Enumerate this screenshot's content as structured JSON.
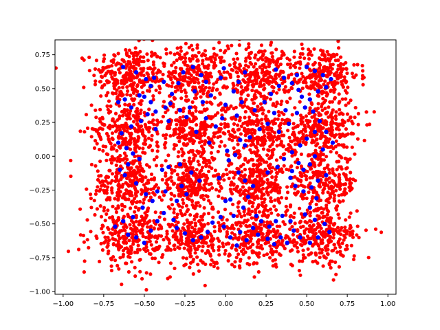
{
  "chart_data": {
    "type": "scatter",
    "title": "",
    "xlabel": "",
    "ylabel": "",
    "xlim": [
      -1.05,
      1.05
    ],
    "ylim": [
      -1.02,
      0.86
    ],
    "grid": false,
    "x_ticks": [
      -1.0,
      -0.75,
      -0.5,
      -0.25,
      0.0,
      0.25,
      0.5,
      0.75,
      1.0
    ],
    "x_tick_labels": [
      "−1.00",
      "−0.75",
      "−0.50",
      "−0.25",
      "0.00",
      "0.25",
      "0.50",
      "0.75",
      "1.00"
    ],
    "y_ticks": [
      -1.0,
      -0.75,
      -0.5,
      -0.25,
      0.0,
      0.25,
      0.5,
      0.75
    ],
    "y_tick_labels": [
      "−1.00",
      "−0.75",
      "−0.50",
      "−0.25",
      "0.00",
      "0.25",
      "0.50",
      "0.75"
    ],
    "background_series": {
      "color": "#ff0000",
      "cluster_centers": [
        [
          -0.6,
          0.6
        ],
        [
          -0.2,
          0.6
        ],
        [
          0.2,
          0.6
        ],
        [
          0.6,
          0.6
        ],
        [
          -0.6,
          0.2
        ],
        [
          -0.2,
          0.2
        ],
        [
          0.2,
          0.2
        ],
        [
          0.6,
          0.2
        ],
        [
          -0.6,
          -0.2
        ],
        [
          -0.2,
          -0.2
        ],
        [
          0.2,
          -0.2
        ],
        [
          0.6,
          -0.2
        ],
        [
          -0.6,
          -0.6
        ],
        [
          -0.2,
          -0.6
        ],
        [
          0.2,
          -0.6
        ],
        [
          0.6,
          -0.6
        ]
      ],
      "points_per_cluster": 260,
      "spread": 0.11
    },
    "highlight_series": {
      "color": "#0000ff",
      "points": [
        [
          -0.63,
          0.66
        ],
        [
          -0.55,
          0.62
        ],
        [
          -0.49,
          0.57
        ],
        [
          -0.46,
          0.52
        ],
        [
          -0.53,
          0.45
        ],
        [
          -0.62,
          0.42
        ],
        [
          -0.66,
          0.4
        ],
        [
          -0.58,
          0.36
        ],
        [
          -0.46,
          0.4
        ],
        [
          -0.43,
          0.33
        ],
        [
          -0.37,
          0.36
        ],
        [
          -0.38,
          0.55
        ],
        [
          -0.29,
          0.54
        ],
        [
          -0.33,
          0.46
        ],
        [
          -0.34,
          0.39
        ],
        [
          -0.26,
          0.62
        ],
        [
          -0.2,
          0.66
        ],
        [
          -0.15,
          0.6
        ],
        [
          -0.12,
          0.55
        ],
        [
          -0.19,
          0.48
        ],
        [
          -0.09,
          0.45
        ],
        [
          -0.03,
          0.58
        ],
        [
          -0.01,
          0.65
        ],
        [
          -0.28,
          0.34
        ],
        [
          -0.24,
          0.29
        ],
        [
          -0.35,
          0.26
        ],
        [
          -0.43,
          0.2
        ],
        [
          -0.48,
          0.31
        ],
        [
          -0.52,
          0.26
        ],
        [
          -0.58,
          0.22
        ],
        [
          -0.64,
          0.17
        ],
        [
          -0.66,
          0.1
        ],
        [
          -0.61,
          0.06
        ],
        [
          -0.57,
          0.02
        ],
        [
          -0.53,
          -0.02
        ],
        [
          -0.6,
          -0.06
        ],
        [
          -0.65,
          -0.1
        ],
        [
          -0.62,
          -0.14
        ],
        [
          -0.55,
          -0.2
        ],
        [
          -0.49,
          -0.28
        ],
        [
          -0.42,
          -0.26
        ],
        [
          -0.39,
          -0.1
        ],
        [
          -0.35,
          -0.08
        ],
        [
          -0.28,
          -0.06
        ],
        [
          -0.21,
          -0.12
        ],
        [
          -0.16,
          -0.18
        ],
        [
          -0.27,
          -0.22
        ],
        [
          -0.24,
          -0.28
        ],
        [
          -0.3,
          -0.33
        ],
        [
          -0.37,
          -0.26
        ],
        [
          -0.45,
          -0.33
        ],
        [
          -0.51,
          -0.38
        ],
        [
          -0.57,
          -0.45
        ],
        [
          -0.63,
          -0.48
        ],
        [
          -0.68,
          -0.52
        ],
        [
          -0.6,
          -0.58
        ],
        [
          -0.55,
          -0.6
        ],
        [
          -0.5,
          -0.64
        ],
        [
          -0.46,
          -0.55
        ],
        [
          -0.42,
          -0.48
        ],
        [
          -0.38,
          -0.42
        ],
        [
          -0.32,
          -0.47
        ],
        [
          -0.3,
          -0.53
        ],
        [
          -0.25,
          -0.57
        ],
        [
          -0.2,
          -0.62
        ],
        [
          -0.15,
          -0.6
        ],
        [
          -0.11,
          -0.56
        ],
        [
          -0.08,
          -0.49
        ],
        [
          -0.03,
          -0.45
        ],
        [
          0.0,
          -0.33
        ],
        [
          0.03,
          -0.32
        ],
        [
          0.02,
          -0.03
        ],
        [
          0.06,
          0.01
        ],
        [
          0.01,
          0.04
        ],
        [
          0.09,
          0.12
        ],
        [
          0.12,
          0.08
        ],
        [
          0.15,
          0.14
        ],
        [
          0.21,
          0.2
        ],
        [
          0.26,
          0.24
        ],
        [
          0.3,
          0.32
        ],
        [
          0.33,
          0.18
        ],
        [
          0.39,
          0.24
        ],
        [
          0.37,
          0.34
        ],
        [
          0.44,
          0.32
        ],
        [
          0.49,
          0.36
        ],
        [
          0.52,
          0.42
        ],
        [
          0.57,
          0.48
        ],
        [
          0.62,
          0.51
        ],
        [
          0.65,
          0.57
        ],
        [
          0.6,
          0.6
        ],
        [
          0.55,
          0.63
        ],
        [
          0.5,
          0.66
        ],
        [
          0.44,
          0.6
        ],
        [
          0.41,
          0.54
        ],
        [
          0.36,
          0.58
        ],
        [
          0.31,
          0.64
        ],
        [
          0.12,
          0.62
        ],
        [
          0.08,
          0.55
        ],
        [
          0.05,
          0.48
        ],
        [
          0.1,
          0.4
        ],
        [
          0.07,
          0.3
        ],
        [
          0.18,
          0.34
        ],
        [
          0.24,
          0.4
        ],
        [
          0.28,
          0.46
        ],
        [
          0.33,
          0.52
        ],
        [
          0.45,
          0.49
        ],
        [
          0.47,
          0.44
        ],
        [
          0.54,
          0.33
        ],
        [
          0.58,
          0.26
        ],
        [
          0.62,
          0.18
        ],
        [
          0.66,
          0.1
        ],
        [
          0.6,
          0.05
        ],
        [
          0.55,
          0.0
        ],
        [
          0.52,
          -0.06
        ],
        [
          0.48,
          -0.1
        ],
        [
          0.45,
          -0.05
        ],
        [
          0.41,
          -0.11
        ],
        [
          0.4,
          -0.16
        ],
        [
          0.43,
          -0.22
        ],
        [
          0.48,
          -0.26
        ],
        [
          0.53,
          -0.23
        ],
        [
          0.57,
          -0.18
        ],
        [
          0.62,
          -0.14
        ],
        [
          0.56,
          -0.31
        ],
        [
          0.52,
          -0.38
        ],
        [
          0.49,
          -0.43
        ],
        [
          0.55,
          -0.47
        ],
        [
          0.61,
          -0.5
        ],
        [
          0.64,
          -0.56
        ],
        [
          0.57,
          -0.6
        ],
        [
          0.52,
          -0.64
        ],
        [
          0.46,
          -0.6
        ],
        [
          0.42,
          -0.55
        ],
        [
          0.4,
          -0.48
        ],
        [
          0.35,
          -0.44
        ],
        [
          0.31,
          -0.48
        ],
        [
          0.27,
          -0.52
        ],
        [
          0.22,
          -0.48
        ],
        [
          0.19,
          -0.44
        ],
        [
          0.17,
          -0.53
        ],
        [
          0.2,
          -0.58
        ],
        [
          0.26,
          -0.61
        ],
        [
          0.3,
          -0.65
        ],
        [
          0.34,
          -0.6
        ],
        [
          0.38,
          -0.64
        ],
        [
          0.09,
          -0.56
        ],
        [
          0.13,
          -0.62
        ],
        [
          0.07,
          -0.66
        ],
        [
          0.03,
          -0.6
        ],
        [
          -0.01,
          -0.52
        ],
        [
          0.05,
          -0.44
        ],
        [
          0.11,
          -0.38
        ],
        [
          0.14,
          -0.3
        ],
        [
          0.17,
          -0.22
        ],
        [
          0.12,
          -0.18
        ],
        [
          0.08,
          -0.12
        ],
        [
          -0.04,
          -0.16
        ],
        [
          0.26,
          -0.12
        ],
        [
          0.32,
          -0.08
        ],
        [
          0.36,
          -0.02
        ],
        [
          0.41,
          0.03
        ],
        [
          0.46,
          0.08
        ],
        [
          0.5,
          0.13
        ],
        [
          0.55,
          0.18
        ],
        [
          -0.12,
          0.28
        ],
        [
          -0.18,
          0.18
        ],
        [
          -0.1,
          0.1
        ],
        [
          -0.06,
          0.22
        ],
        [
          -0.02,
          0.28
        ],
        [
          0.0,
          0.38
        ],
        [
          -0.44,
          0.58
        ],
        [
          -0.5,
          0.44
        ],
        [
          -0.22,
          0.36
        ],
        [
          -0.14,
          0.4
        ]
      ]
    }
  }
}
